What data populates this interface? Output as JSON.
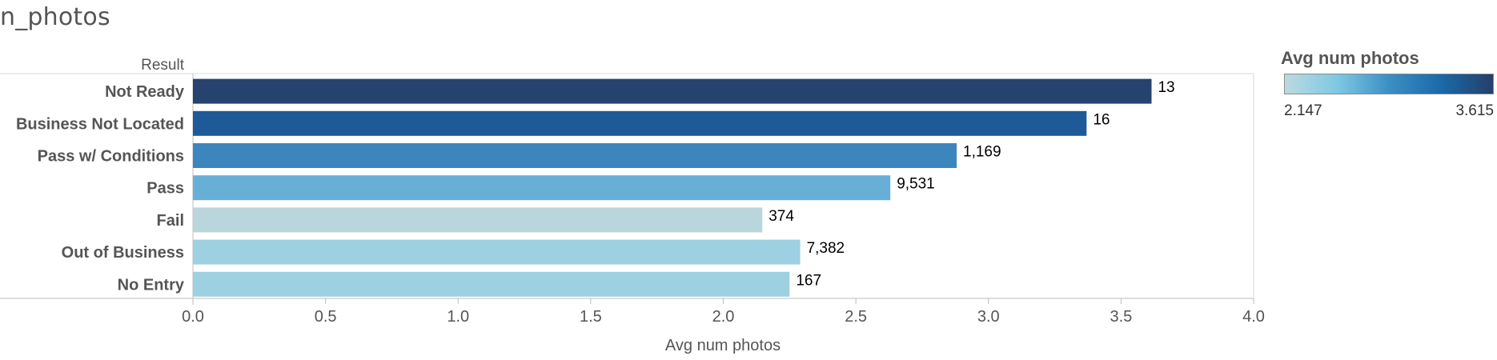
{
  "page_title": "n_photos",
  "legend": {
    "title": "Avg num photos",
    "min_label": "2.147",
    "max_label": "3.615",
    "gradient_colors": [
      "#bcd9e0",
      "#7fc9e3",
      "#3a8fc4",
      "#1a6aa8",
      "#253f6b"
    ]
  },
  "chart_data": {
    "type": "bar",
    "orientation": "horizontal",
    "category_axis_title": "Result",
    "categories": [
      "Not Ready",
      "Business Not Located",
      "Pass w/ Conditions",
      "Pass",
      "Fail",
      "Out of Business",
      "No Entry"
    ],
    "values": [
      3.615,
      3.37,
      2.88,
      2.63,
      2.147,
      2.29,
      2.25
    ],
    "data_labels": [
      "13",
      "16",
      "1,169",
      "9,531",
      "374",
      "7,382",
      "167"
    ],
    "colors": [
      "#26436f",
      "#1f5a98",
      "#3c86bd",
      "#67afd7",
      "#b8d6dc",
      "#9dd0e1",
      "#9dd0e1"
    ],
    "xlabel": "Avg num photos",
    "xlim": [
      0,
      4
    ],
    "xticks": [
      0,
      0.5,
      1,
      1.5,
      2,
      2.5,
      3,
      3.5,
      4
    ],
    "xtick_labels": [
      "0.0",
      "0.5",
      "1.0",
      "1.5",
      "2.0",
      "2.5",
      "3.0",
      "3.5",
      "4.0"
    ],
    "grid": false
  }
}
